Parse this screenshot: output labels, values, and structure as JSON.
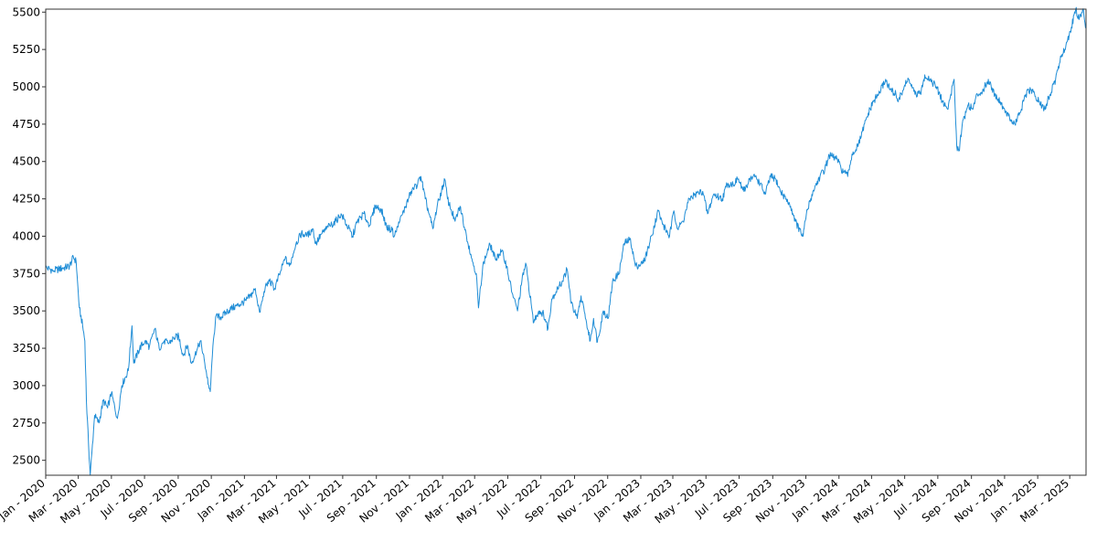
{
  "chart_data": {
    "type": "line",
    "title": "",
    "xlabel": "",
    "ylabel": "",
    "grid": false,
    "ylim": [
      2400,
      5520
    ],
    "xlim": [
      "2020-01-01",
      "2025-03-31"
    ],
    "y_ticks": [
      2500,
      2750,
      3000,
      3250,
      3500,
      3750,
      4000,
      4250,
      4500,
      4750,
      5000,
      5250,
      5500
    ],
    "y_tick_labels": [
      "2500",
      "2750",
      "3000",
      "3250",
      "3500",
      "3750",
      "4000",
      "4250",
      "4500",
      "4750",
      "5000",
      "5250",
      "5500"
    ],
    "x_ticks": [
      "2020-01-01",
      "2020-03-01",
      "2020-05-01",
      "2020-07-01",
      "2020-09-01",
      "2020-11-01",
      "2021-01-01",
      "2021-03-01",
      "2021-05-01",
      "2021-07-01",
      "2021-09-01",
      "2021-11-01",
      "2022-01-01",
      "2022-03-01",
      "2022-05-01",
      "2022-07-01",
      "2022-09-01",
      "2022-11-01",
      "2023-01-01",
      "2023-03-01",
      "2023-05-01",
      "2023-07-01",
      "2023-09-01",
      "2023-11-01",
      "2024-01-01",
      "2024-03-01",
      "2024-05-01",
      "2024-07-01",
      "2024-09-01",
      "2024-11-01",
      "2025-01-01",
      "2025-03-01"
    ],
    "x_tick_labels": [
      "Jan - 2020",
      "Mar - 2020",
      "May - 2020",
      "Jul - 2020",
      "Sep - 2020",
      "Nov - 2020",
      "Jan - 2021",
      "Mar - 2021",
      "May - 2021",
      "Jul - 2021",
      "Sep - 2021",
      "Nov - 2021",
      "Jan - 2022",
      "Mar - 2022",
      "May - 2022",
      "Jul - 2022",
      "Sep - 2022",
      "Nov - 2022",
      "Jan - 2023",
      "Mar - 2023",
      "May - 2023",
      "Jul - 2023",
      "Sep - 2023",
      "Nov - 2023",
      "Jan - 2024",
      "Mar - 2024",
      "May - 2024",
      "Jul - 2024",
      "Sep - 2024",
      "Nov - 2024",
      "Jan - 2025",
      "Mar - 2025"
    ],
    "series": [
      {
        "color": "#1f8dd6",
        "points": [
          [
            "2020-01-01",
            3790
          ],
          [
            "2020-01-15",
            3770
          ],
          [
            "2020-01-31",
            3785
          ],
          [
            "2020-02-14",
            3800
          ],
          [
            "2020-02-21",
            3860
          ],
          [
            "2020-02-26",
            3830
          ],
          [
            "2020-03-03",
            3520
          ],
          [
            "2020-03-09",
            3400
          ],
          [
            "2020-03-13",
            3300
          ],
          [
            "2020-03-16",
            2900
          ],
          [
            "2020-03-20",
            2600
          ],
          [
            "2020-03-23",
            2400
          ],
          [
            "2020-03-26",
            2550
          ],
          [
            "2020-03-31",
            2800
          ],
          [
            "2020-04-08",
            2750
          ],
          [
            "2020-04-16",
            2900
          ],
          [
            "2020-04-24",
            2850
          ],
          [
            "2020-05-01",
            2950
          ],
          [
            "2020-05-12",
            2780
          ],
          [
            "2020-05-20",
            3000
          ],
          [
            "2020-06-01",
            3100
          ],
          [
            "2020-06-08",
            3400
          ],
          [
            "2020-06-11",
            3150
          ],
          [
            "2020-06-22",
            3250
          ],
          [
            "2020-07-02",
            3300
          ],
          [
            "2020-07-10",
            3260
          ],
          [
            "2020-07-20",
            3380
          ],
          [
            "2020-07-28",
            3250
          ],
          [
            "2020-08-06",
            3300
          ],
          [
            "2020-08-14",
            3280
          ],
          [
            "2020-08-24",
            3320
          ],
          [
            "2020-09-02",
            3330
          ],
          [
            "2020-09-10",
            3200
          ],
          [
            "2020-09-18",
            3270
          ],
          [
            "2020-09-25",
            3150
          ],
          [
            "2020-10-05",
            3230
          ],
          [
            "2020-10-12",
            3300
          ],
          [
            "2020-10-20",
            3150
          ],
          [
            "2020-10-28",
            2980
          ],
          [
            "2020-10-30",
            2960
          ],
          [
            "2020-11-03",
            3200
          ],
          [
            "2020-11-09",
            3460
          ],
          [
            "2020-11-20",
            3460
          ],
          [
            "2020-12-01",
            3500
          ],
          [
            "2020-12-10",
            3520
          ],
          [
            "2020-12-22",
            3540
          ],
          [
            "2021-01-04",
            3570
          ],
          [
            "2021-01-12",
            3600
          ],
          [
            "2021-01-21",
            3650
          ],
          [
            "2021-01-29",
            3490
          ],
          [
            "2021-02-08",
            3650
          ],
          [
            "2021-02-16",
            3700
          ],
          [
            "2021-02-26",
            3650
          ],
          [
            "2021-03-08",
            3760
          ],
          [
            "2021-03-17",
            3850
          ],
          [
            "2021-03-25",
            3800
          ],
          [
            "2021-04-06",
            3950
          ],
          [
            "2021-04-16",
            4020
          ],
          [
            "2021-04-26",
            4000
          ],
          [
            "2021-05-07",
            4050
          ],
          [
            "2021-05-12",
            3950
          ],
          [
            "2021-05-24",
            4020
          ],
          [
            "2021-06-04",
            4060
          ],
          [
            "2021-06-18",
            4100
          ],
          [
            "2021-06-28",
            4150
          ],
          [
            "2021-07-08",
            4080
          ],
          [
            "2021-07-19",
            4000
          ],
          [
            "2021-07-28",
            4100
          ],
          [
            "2021-08-09",
            4150
          ],
          [
            "2021-08-19",
            4070
          ],
          [
            "2021-08-30",
            4200
          ],
          [
            "2021-09-10",
            4180
          ],
          [
            "2021-09-20",
            4060
          ],
          [
            "2021-09-30",
            4040
          ],
          [
            "2021-10-04",
            4000
          ],
          [
            "2021-10-14",
            4100
          ],
          [
            "2021-10-25",
            4200
          ],
          [
            "2021-11-04",
            4300
          ],
          [
            "2021-11-16",
            4350
          ],
          [
            "2021-11-22",
            4400
          ],
          [
            "2021-11-30",
            4250
          ],
          [
            "2021-12-07",
            4150
          ],
          [
            "2021-12-14",
            4050
          ],
          [
            "2021-12-22",
            4200
          ],
          [
            "2022-01-05",
            4380
          ],
          [
            "2022-01-10",
            4250
          ],
          [
            "2022-01-24",
            4100
          ],
          [
            "2022-02-02",
            4200
          ],
          [
            "2022-02-14",
            4000
          ],
          [
            "2022-02-24",
            3850
          ],
          [
            "2022-03-04",
            3750
          ],
          [
            "2022-03-08",
            3520
          ],
          [
            "2022-03-16",
            3800
          ],
          [
            "2022-03-29",
            3950
          ],
          [
            "2022-04-08",
            3850
          ],
          [
            "2022-04-20",
            3900
          ],
          [
            "2022-04-29",
            3800
          ],
          [
            "2022-05-09",
            3620
          ],
          [
            "2022-05-19",
            3500
          ],
          [
            "2022-05-27",
            3700
          ],
          [
            "2022-06-03",
            3820
          ],
          [
            "2022-06-13",
            3550
          ],
          [
            "2022-06-17",
            3420
          ],
          [
            "2022-06-27",
            3500
          ],
          [
            "2022-07-06",
            3480
          ],
          [
            "2022-07-14",
            3380
          ],
          [
            "2022-07-21",
            3580
          ],
          [
            "2022-08-01",
            3650
          ],
          [
            "2022-08-10",
            3700
          ],
          [
            "2022-08-18",
            3780
          ],
          [
            "2022-08-26",
            3550
          ],
          [
            "2022-09-06",
            3450
          ],
          [
            "2022-09-13",
            3600
          ],
          [
            "2022-09-21",
            3450
          ],
          [
            "2022-09-30",
            3300
          ],
          [
            "2022-10-06",
            3450
          ],
          [
            "2022-10-13",
            3290
          ],
          [
            "2022-10-24",
            3500
          ],
          [
            "2022-11-02",
            3450
          ],
          [
            "2022-11-10",
            3700
          ],
          [
            "2022-11-22",
            3750
          ],
          [
            "2022-12-01",
            3950
          ],
          [
            "2022-12-13",
            3980
          ],
          [
            "2022-12-22",
            3800
          ],
          [
            "2023-01-06",
            3820
          ],
          [
            "2023-01-17",
            3950
          ],
          [
            "2023-02-02",
            4170
          ],
          [
            "2023-02-10",
            4080
          ],
          [
            "2023-02-23",
            4000
          ],
          [
            "2023-03-03",
            4170
          ],
          [
            "2023-03-10",
            4050
          ],
          [
            "2023-03-20",
            4100
          ],
          [
            "2023-03-31",
            4250
          ],
          [
            "2023-04-11",
            4280
          ],
          [
            "2023-04-25",
            4300
          ],
          [
            "2023-05-04",
            4150
          ],
          [
            "2023-05-15",
            4280
          ],
          [
            "2023-05-31",
            4250
          ],
          [
            "2023-06-09",
            4350
          ],
          [
            "2023-06-20",
            4350
          ],
          [
            "2023-06-29",
            4380
          ],
          [
            "2023-07-10",
            4300
          ],
          [
            "2023-07-20",
            4380
          ],
          [
            "2023-07-31",
            4400
          ],
          [
            "2023-08-09",
            4350
          ],
          [
            "2023-08-18",
            4280
          ],
          [
            "2023-08-28",
            4400
          ],
          [
            "2023-09-07",
            4380
          ],
          [
            "2023-09-15",
            4300
          ],
          [
            "2023-09-26",
            4250
          ],
          [
            "2023-10-04",
            4200
          ],
          [
            "2023-10-13",
            4100
          ],
          [
            "2023-10-23",
            4020
          ],
          [
            "2023-10-27",
            4000
          ],
          [
            "2023-11-02",
            4150
          ],
          [
            "2023-11-14",
            4300
          ],
          [
            "2023-11-27",
            4400
          ],
          [
            "2023-12-06",
            4450
          ],
          [
            "2023-12-14",
            4540
          ],
          [
            "2023-12-28",
            4520
          ],
          [
            "2024-01-05",
            4450
          ],
          [
            "2024-01-17",
            4400
          ],
          [
            "2024-01-25",
            4550
          ],
          [
            "2024-02-05",
            4600
          ],
          [
            "2024-02-13",
            4700
          ],
          [
            "2024-02-22",
            4800
          ],
          [
            "2024-03-04",
            4900
          ],
          [
            "2024-03-14",
            4950
          ],
          [
            "2024-03-27",
            5050
          ],
          [
            "2024-04-04",
            4980
          ],
          [
            "2024-04-15",
            4950
          ],
          [
            "2024-04-19",
            4900
          ],
          [
            "2024-04-30",
            5000
          ],
          [
            "2024-05-08",
            5050
          ],
          [
            "2024-05-20",
            4950
          ],
          [
            "2024-05-31",
            4950
          ],
          [
            "2024-06-07",
            5080
          ],
          [
            "2024-06-17",
            5050
          ],
          [
            "2024-06-28",
            5000
          ],
          [
            "2024-07-10",
            4900
          ],
          [
            "2024-07-19",
            4850
          ],
          [
            "2024-07-31",
            5050
          ],
          [
            "2024-08-05",
            4600
          ],
          [
            "2024-08-09",
            4570
          ],
          [
            "2024-08-15",
            4750
          ],
          [
            "2024-08-26",
            4880
          ],
          [
            "2024-09-03",
            4850
          ],
          [
            "2024-09-12",
            4950
          ],
          [
            "2024-09-23",
            4980
          ],
          [
            "2024-10-02",
            5050
          ],
          [
            "2024-10-14",
            4950
          ],
          [
            "2024-10-24",
            4900
          ],
          [
            "2024-11-01",
            4850
          ],
          [
            "2024-11-12",
            4780
          ],
          [
            "2024-11-20",
            4750
          ],
          [
            "2024-12-02",
            4850
          ],
          [
            "2024-12-10",
            4950
          ],
          [
            "2024-12-20",
            4980
          ],
          [
            "2025-01-03",
            4900
          ],
          [
            "2025-01-13",
            4850
          ],
          [
            "2025-01-24",
            4950
          ],
          [
            "2025-02-03",
            5050
          ],
          [
            "2025-02-13",
            5200
          ],
          [
            "2025-02-24",
            5300
          ],
          [
            "2025-03-04",
            5400
          ],
          [
            "2025-03-12",
            5520
          ],
          [
            "2025-03-18",
            5450
          ],
          [
            "2025-03-25",
            5520
          ],
          [
            "2025-03-31",
            5400
          ]
        ]
      }
    ]
  }
}
